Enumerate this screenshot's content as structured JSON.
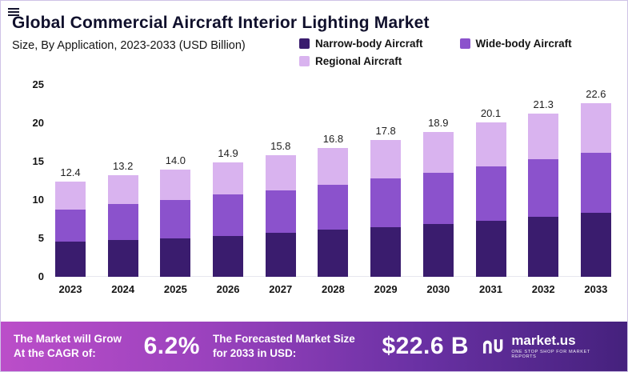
{
  "header": {
    "title": "Global Commercial Aircraft Interior Lighting Market",
    "subtitle": "Size, By Application, 2023-2033 (USD Billion)"
  },
  "legend": [
    {
      "label": "Narrow-body Aircraft",
      "color": "#3a1c6e"
    },
    {
      "label": "Wide-body Aircraft",
      "color": "#8b52cc"
    },
    {
      "label": "Regional Aircraft",
      "color": "#d9b3ef"
    }
  ],
  "chart_data": {
    "type": "bar",
    "stacked": true,
    "title": "Global Commercial Aircraft Interior Lighting Market",
    "subtitle": "Size, By Application, 2023-2033 (USD Billion)",
    "categories": [
      "2023",
      "2024",
      "2025",
      "2026",
      "2027",
      "2028",
      "2029",
      "2030",
      "2031",
      "2032",
      "2033"
    ],
    "series": [
      {
        "name": "Narrow-body Aircraft",
        "color": "#3a1c6e",
        "values": [
          4.6,
          4.8,
          5.0,
          5.3,
          5.7,
          6.1,
          6.5,
          6.9,
          7.3,
          7.8,
          8.3
        ]
      },
      {
        "name": "Wide-body Aircraft",
        "color": "#8b52cc",
        "values": [
          4.2,
          4.7,
          5.0,
          5.4,
          5.6,
          5.9,
          6.3,
          6.7,
          7.1,
          7.5,
          7.9
        ]
      },
      {
        "name": "Regional Aircraft",
        "color": "#d9b3ef",
        "values": [
          3.6,
          3.7,
          4.0,
          4.2,
          4.5,
          4.8,
          5.0,
          5.3,
          5.7,
          6.0,
          6.4
        ]
      }
    ],
    "totals": [
      12.4,
      13.2,
      14.0,
      14.9,
      15.8,
      16.8,
      17.8,
      18.9,
      20.1,
      21.3,
      22.6
    ],
    "total_labels": [
      "12.4",
      "13.2",
      "14.0",
      "14.9",
      "15.8",
      "16.8",
      "17.8",
      "18.9",
      "20.1",
      "21.3",
      "22.6"
    ],
    "xlabel": "",
    "ylabel": "",
    "ylim": [
      0,
      25
    ],
    "yticks": [
      0,
      5,
      10,
      15,
      20,
      25
    ],
    "grid": false,
    "legend_position": "top-right",
    "unit": "USD Billion"
  },
  "footer": {
    "cagr_label": "The Market will Grow At the CAGR of:",
    "cagr_value": "6.2%",
    "forecast_label": "The Forecasted Market Size for 2033 in USD:",
    "forecast_value": "$22.6 B",
    "brand": "market.us",
    "brand_tagline": "One Stop Shop For Market Reports",
    "gradient": [
      "#bb4ec9",
      "#9a42bd",
      "#6a31a4",
      "#45217d"
    ]
  }
}
